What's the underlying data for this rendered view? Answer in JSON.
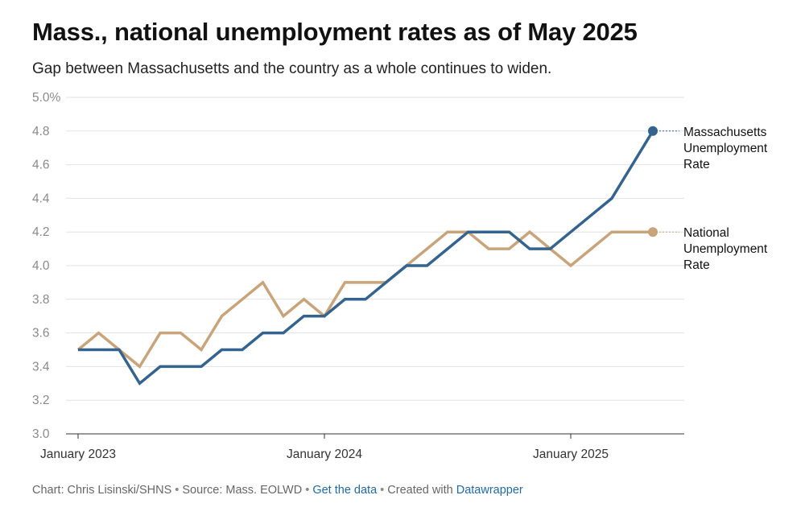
{
  "title": "Mass., national unemployment rates as of May 2025",
  "subtitle": "Gap between Massachusetts and the country as a whole continues to widen.",
  "footer": {
    "chart_by": "Chart: Chris Lisinski/SHNS",
    "separator": "•",
    "source": "Source: Mass. EOLWD",
    "get_data": "Get the data",
    "created_with": "Created with",
    "datawrapper": "Datawrapper"
  },
  "colors": {
    "massachusetts": "#34638f",
    "national": "#c9a47b",
    "grid": "#e2e2e2",
    "axis_text": "#8a8a8a"
  },
  "chart_data": {
    "type": "line",
    "x": [
      "2023-01",
      "2023-02",
      "2023-03",
      "2023-04",
      "2023-05",
      "2023-06",
      "2023-07",
      "2023-08",
      "2023-09",
      "2023-10",
      "2023-11",
      "2023-12",
      "2024-01",
      "2024-02",
      "2024-03",
      "2024-04",
      "2024-05",
      "2024-06",
      "2024-07",
      "2024-08",
      "2024-09",
      "2024-10",
      "2024-11",
      "2024-12",
      "2025-01",
      "2025-02",
      "2025-03",
      "2025-04",
      "2025-05"
    ],
    "x_tick_labels": [
      "January 2023",
      "January 2024",
      "January 2025"
    ],
    "y_ticks": [
      3.0,
      3.2,
      3.4,
      3.6,
      3.8,
      4.0,
      4.2,
      4.4,
      4.6,
      4.8,
      5.0
    ],
    "y_tick_labels": [
      "3.0",
      "3.2",
      "3.4",
      "3.6",
      "3.8",
      "4.0",
      "4.2",
      "4.4",
      "4.6",
      "4.8",
      "5.0%"
    ],
    "ylim": [
      3.0,
      5.0
    ],
    "grid": true,
    "series": [
      {
        "name": "Massachusetts Unemployment Rate",
        "label_lines": [
          "Massachusetts",
          "Unemployment",
          "Rate"
        ],
        "color": "#34638f",
        "values": [
          3.5,
          3.5,
          3.5,
          3.3,
          3.4,
          3.4,
          3.4,
          3.5,
          3.5,
          3.6,
          3.6,
          3.7,
          3.7,
          3.8,
          3.8,
          3.9,
          4.0,
          4.0,
          4.1,
          4.2,
          4.2,
          4.2,
          4.1,
          4.1,
          4.2,
          4.3,
          4.4,
          4.6,
          4.8
        ]
      },
      {
        "name": "National Unemployment Rate",
        "label_lines": [
          "National",
          "Unemployment",
          "Rate"
        ],
        "color": "#c9a47b",
        "values": [
          3.5,
          3.6,
          3.5,
          3.4,
          3.6,
          3.6,
          3.5,
          3.7,
          3.8,
          3.9,
          3.7,
          3.8,
          3.7,
          3.9,
          3.9,
          3.9,
          4.0,
          4.1,
          4.2,
          4.2,
          4.1,
          4.1,
          4.2,
          4.1,
          4.0,
          4.1,
          4.2,
          4.2,
          4.2
        ]
      }
    ]
  }
}
